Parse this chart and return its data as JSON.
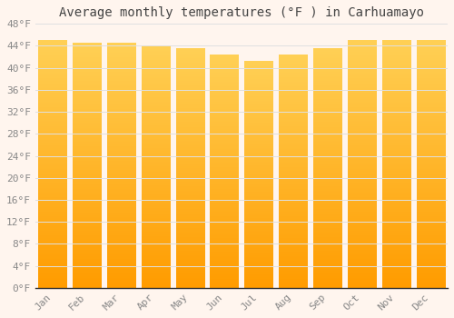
{
  "title": "Average monthly temperatures (°F ) in Carhuamayo",
  "months": [
    "Jan",
    "Feb",
    "Mar",
    "Apr",
    "May",
    "Jun",
    "Jul",
    "Aug",
    "Sep",
    "Oct",
    "Nov",
    "Dec"
  ],
  "values": [
    45.1,
    44.6,
    44.6,
    44.0,
    43.5,
    42.4,
    41.2,
    42.4,
    43.5,
    45.0,
    45.1,
    45.1
  ],
  "bar_color_top": "#FFD060",
  "bar_color_bottom": "#FFA000",
  "background_color": "#FFF5EE",
  "grid_color": "#E0E0E0",
  "ylim": [
    0,
    48
  ],
  "yticks": [
    0,
    4,
    8,
    12,
    16,
    20,
    24,
    28,
    32,
    36,
    40,
    44,
    48
  ],
  "title_fontsize": 10,
  "tick_fontsize": 8,
  "tick_font_family": "monospace"
}
